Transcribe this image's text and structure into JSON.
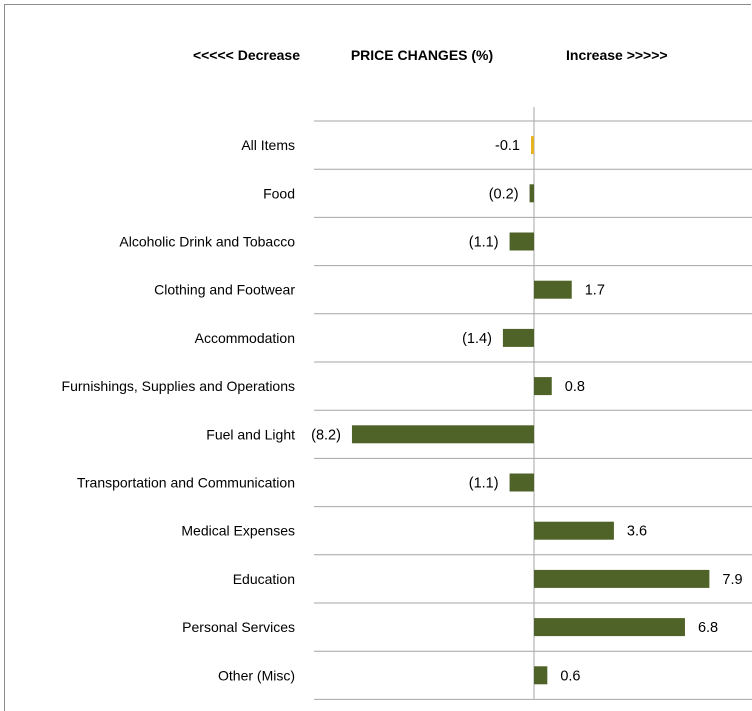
{
  "chart_data": {
    "type": "bar",
    "orientation": "horizontal",
    "title": "PRICE  CHANGES (%)",
    "header_left": "<<<<< Decrease",
    "header_right": "Increase  >>>>>",
    "categories": [
      "All Items",
      "Food",
      "Alcoholic Drink and Tobacco",
      "Clothing and Footwear",
      "Accommodation",
      "Furnishings, Supplies and Operations",
      "Fuel and Light",
      "Transportation and Communication",
      "Medical Expenses",
      "Education",
      "Personal Services",
      "Other (Misc)"
    ],
    "values": [
      -0.1,
      -0.2,
      -1.1,
      1.7,
      -1.4,
      0.8,
      -8.2,
      -1.1,
      3.6,
      7.9,
      6.8,
      0.6
    ],
    "value_labels": [
      "-0.1",
      "(0.2)",
      "(1.1)",
      "1.7",
      "(1.4)",
      "0.8",
      "(8.2)",
      "(1.1)",
      "3.6",
      "7.9",
      "6.8",
      "0.6"
    ],
    "xlim": [
      -8.2,
      9.4
    ],
    "grid": true,
    "colors": {
      "bar": "#4f6228",
      "highlight": "#e6b422",
      "grid": "#a6a6a6",
      "axis": "#a6a6a6"
    },
    "highlight_index": 0
  }
}
